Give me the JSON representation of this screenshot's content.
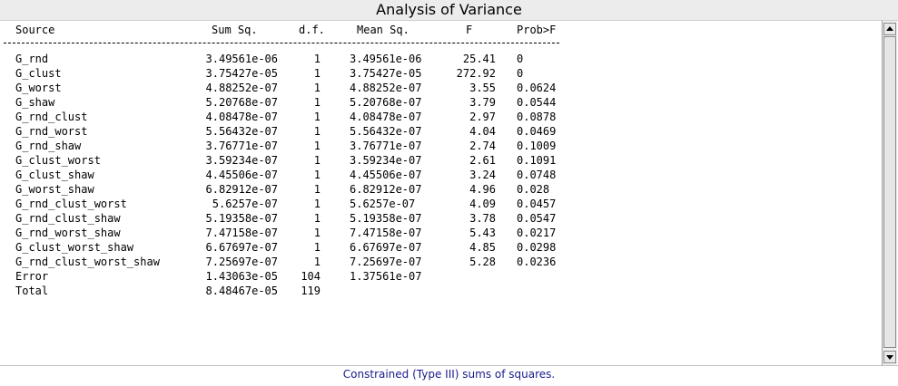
{
  "window": {
    "title": "Analysis of Variance"
  },
  "table": {
    "headers": {
      "source": "Source",
      "sum_sq": "Sum Sq.",
      "df": "d.f.",
      "mean_sq": "Mean Sq.",
      "f": "F",
      "prob": "Prob>F"
    },
    "rows": [
      {
        "source": "G_rnd",
        "sum_sq": "3.49561e-06",
        "df": "1",
        "mean_sq": "3.49561e-06",
        "f": "25.41",
        "prob": "0"
      },
      {
        "source": "G_clust",
        "sum_sq": "3.75427e-05",
        "df": "1",
        "mean_sq": "3.75427e-05",
        "f": "272.92",
        "prob": "0"
      },
      {
        "source": "G_worst",
        "sum_sq": "4.88252e-07",
        "df": "1",
        "mean_sq": "4.88252e-07",
        "f": "3.55",
        "prob": "0.0624"
      },
      {
        "source": "G_shaw",
        "sum_sq": "5.20768e-07",
        "df": "1",
        "mean_sq": "5.20768e-07",
        "f": "3.79",
        "prob": "0.0544"
      },
      {
        "source": "G_rnd_clust",
        "sum_sq": "4.08478e-07",
        "df": "1",
        "mean_sq": "4.08478e-07",
        "f": "2.97",
        "prob": "0.0878"
      },
      {
        "source": "G_rnd_worst",
        "sum_sq": "5.56432e-07",
        "df": "1",
        "mean_sq": "5.56432e-07",
        "f": "4.04",
        "prob": "0.0469"
      },
      {
        "source": "G_rnd_shaw",
        "sum_sq": "3.76771e-07",
        "df": "1",
        "mean_sq": "3.76771e-07",
        "f": "2.74",
        "prob": "0.1009"
      },
      {
        "source": "G_clust_worst",
        "sum_sq": "3.59234e-07",
        "df": "1",
        "mean_sq": "3.59234e-07",
        "f": "2.61",
        "prob": "0.1091"
      },
      {
        "source": "G_clust_shaw",
        "sum_sq": "4.45506e-07",
        "df": "1",
        "mean_sq": "4.45506e-07",
        "f": "3.24",
        "prob": "0.0748"
      },
      {
        "source": "G_worst_shaw",
        "sum_sq": "6.82912e-07",
        "df": "1",
        "mean_sq": "6.82912e-07",
        "f": "4.96",
        "prob": "0.028"
      },
      {
        "source": "G_rnd_clust_worst",
        "sum_sq": "5.6257e-07",
        "df": "1",
        "mean_sq": "5.6257e-07",
        "f": "4.09",
        "prob": "0.0457"
      },
      {
        "source": "G_rnd_clust_shaw",
        "sum_sq": "5.19358e-07",
        "df": "1",
        "mean_sq": "5.19358e-07",
        "f": "3.78",
        "prob": "0.0547"
      },
      {
        "source": "G_rnd_worst_shaw",
        "sum_sq": "7.47158e-07",
        "df": "1",
        "mean_sq": "7.47158e-07",
        "f": "5.43",
        "prob": "0.0217"
      },
      {
        "source": "G_clust_worst_shaw",
        "sum_sq": "6.67697e-07",
        "df": "1",
        "mean_sq": "6.67697e-07",
        "f": "4.85",
        "prob": "0.0298"
      },
      {
        "source": "G_rnd_clust_worst_shaw",
        "sum_sq": "7.25697e-07",
        "df": "1",
        "mean_sq": "7.25697e-07",
        "f": "5.28",
        "prob": "0.0236"
      },
      {
        "source": "Error",
        "sum_sq": "1.43063e-05",
        "df": "104",
        "mean_sq": "1.37561e-07",
        "f": "",
        "prob": ""
      },
      {
        "source": "Total",
        "sum_sq": "8.48467e-05",
        "df": "119",
        "mean_sq": "",
        "f": "",
        "prob": ""
      }
    ]
  },
  "footer": {
    "note": "Constrained (Type III) sums of squares."
  },
  "scrollbar": {
    "up_icon": "triangle-up-icon",
    "down_icon": "triangle-down-icon"
  }
}
